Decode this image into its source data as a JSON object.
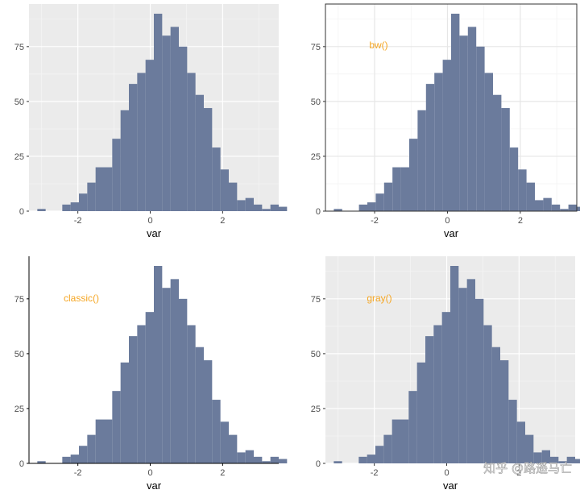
{
  "chart_data": [
    {
      "type": "bar",
      "theme": "gray",
      "xlabel": "var",
      "ylabel": "",
      "annotation": "",
      "xlim": [
        -3.35,
        3.55
      ],
      "ylim": [
        0,
        90
      ],
      "xticks": [
        -2,
        0,
        2
      ],
      "yticks": [
        0,
        25,
        50,
        75
      ],
      "bin_start": -3.35,
      "bin_width": 0.23,
      "counts": [
        0,
        1,
        0,
        0,
        3,
        4,
        8,
        13,
        20,
        20,
        33,
        46,
        58,
        63,
        69,
        90,
        80,
        84,
        75,
        63,
        53,
        47,
        29,
        19,
        13,
        5,
        6,
        3,
        1,
        3,
        2
      ]
    },
    {
      "type": "bar",
      "theme": "bw",
      "xlabel": "var",
      "ylabel": "",
      "annotation": "bw()",
      "xlim": [
        -3.35,
        3.55
      ],
      "ylim": [
        0,
        90
      ],
      "xticks": [
        -2,
        0,
        2
      ],
      "yticks": [
        0,
        25,
        50,
        75
      ],
      "bin_start": -3.35,
      "bin_width": 0.23,
      "counts": [
        0,
        1,
        0,
        0,
        3,
        4,
        8,
        13,
        20,
        20,
        33,
        46,
        58,
        63,
        69,
        90,
        80,
        84,
        75,
        63,
        53,
        47,
        29,
        19,
        13,
        5,
        6,
        3,
        1,
        3,
        2
      ]
    },
    {
      "type": "bar",
      "theme": "classic",
      "xlabel": "var",
      "ylabel": "",
      "annotation": "classic()",
      "xlim": [
        -3.35,
        3.55
      ],
      "ylim": [
        0,
        90
      ],
      "xticks": [
        -2,
        0,
        2
      ],
      "yticks": [
        0,
        25,
        50,
        75
      ],
      "bin_start": -3.35,
      "bin_width": 0.23,
      "counts": [
        0,
        1,
        0,
        0,
        3,
        4,
        8,
        13,
        20,
        20,
        33,
        46,
        58,
        63,
        69,
        90,
        80,
        84,
        75,
        63,
        53,
        47,
        29,
        19,
        13,
        5,
        6,
        3,
        1,
        3,
        2
      ]
    },
    {
      "type": "bar",
      "theme": "gray",
      "xlabel": "var",
      "ylabel": "",
      "annotation": "gray()",
      "xlim": [
        -3.35,
        3.55
      ],
      "ylim": [
        0,
        90
      ],
      "xticks": [
        -2,
        0,
        2
      ],
      "yticks": [
        0,
        25,
        50,
        75
      ],
      "bin_start": -3.35,
      "bin_width": 0.23,
      "counts": [
        0,
        1,
        0,
        0,
        3,
        4,
        8,
        13,
        20,
        20,
        33,
        46,
        58,
        63,
        69,
        90,
        80,
        84,
        75,
        63,
        53,
        47,
        29,
        19,
        13,
        5,
        6,
        3,
        1,
        3,
        2
      ]
    }
  ],
  "colors": {
    "bar_fill": "#6b7b9c",
    "panel_gray": "#ebebeb",
    "annotation": "#f5a623"
  },
  "watermark": "知乎 @路遥马亡"
}
